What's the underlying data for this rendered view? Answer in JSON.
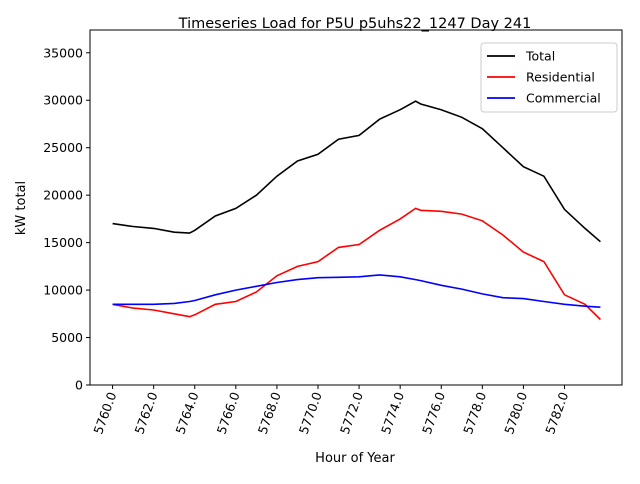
{
  "chart_data": {
    "type": "line",
    "title": "Timeseries Load for P5U p5uhs22_1247  Day 241",
    "xlabel": "Hour of Year",
    "ylabel": "kW total",
    "xlim": [
      5758.9,
      5784.8
    ],
    "ylim": [
      0,
      37400
    ],
    "xticks": [
      5760,
      5762,
      5764,
      5766,
      5768,
      5770,
      5772,
      5774,
      5776,
      5778,
      5780,
      5782
    ],
    "xtick_labels": [
      "5760.0",
      "5762.0",
      "5764.0",
      "5766.0",
      "5768.0",
      "5770.0",
      "5772.0",
      "5774.0",
      "5776.0",
      "5778.0",
      "5780.0",
      "5782.0"
    ],
    "yticks": [
      0,
      5000,
      10000,
      15000,
      20000,
      25000,
      30000,
      35000
    ],
    "ytick_labels": [
      "0",
      "5000",
      "10000",
      "15000",
      "20000",
      "25000",
      "30000",
      "35000"
    ],
    "grid": false,
    "legend_position": "top-right",
    "x": [
      5760,
      5761,
      5762,
      5763,
      5763.75,
      5764,
      5765,
      5766,
      5767,
      5768,
      5769,
      5770,
      5771,
      5772,
      5773,
      5774,
      5774.75,
      5775,
      5776,
      5777,
      5778,
      5779,
      5780,
      5781,
      5782,
      5783,
      5783.75
    ],
    "series": [
      {
        "name": "Total",
        "color": "#000000",
        "values": [
          17000,
          16700,
          16500,
          16100,
          16000,
          16300,
          17800,
          18600,
          20000,
          22000,
          23600,
          24300,
          25900,
          26300,
          28000,
          29000,
          29900,
          29600,
          29000,
          28200,
          27000,
          25000,
          23000,
          22000,
          18500,
          16500,
          15100
        ]
      },
      {
        "name": "Residential",
        "color": "#ff0000",
        "values": [
          8500,
          8100,
          7900,
          7500,
          7200,
          7400,
          8500,
          8800,
          9800,
          11500,
          12500,
          13000,
          14500,
          14800,
          16300,
          17500,
          18600,
          18400,
          18300,
          18000,
          17300,
          15800,
          14000,
          13000,
          9500,
          8500,
          6900
        ]
      },
      {
        "name": "Commercial",
        "color": "#0000ff",
        "values": [
          8500,
          8500,
          8500,
          8600,
          8800,
          8900,
          9500,
          10000,
          10400,
          10800,
          11100,
          11300,
          11350,
          11400,
          11600,
          11400,
          11100,
          11000,
          10500,
          10100,
          9600,
          9200,
          9100,
          8800,
          8500,
          8300,
          8200
        ]
      }
    ]
  }
}
